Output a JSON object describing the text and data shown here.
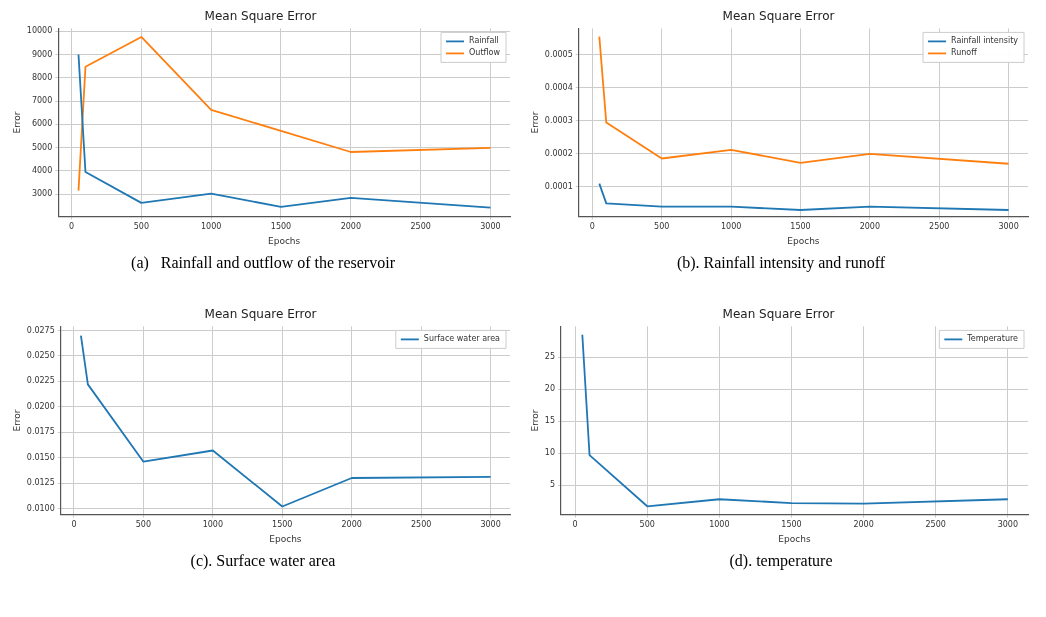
{
  "chart_data": [
    {
      "type": "line",
      "title": "Mean Square Error",
      "xlabel": "Epochs",
      "ylabel": "Error",
      "x": [
        50,
        100,
        500,
        1000,
        1500,
        2000,
        3000
      ],
      "series": [
        {
          "name": "Rainfall",
          "color": "#1f77b4",
          "values": [
            9000,
            3950,
            2620,
            3020,
            2450,
            2840,
            2420
          ]
        },
        {
          "name": "Outflow",
          "color": "#ff7f0e",
          "values": [
            3150,
            8480,
            9760,
            6620,
            5720,
            4810,
            4990
          ]
        }
      ],
      "xlim": [
        -95,
        3140
      ],
      "xticks": [
        0,
        500,
        1000,
        1500,
        2000,
        2500,
        3000
      ],
      "ylim": [
        2030,
        10130
      ],
      "yticks": [
        3000,
        4000,
        5000,
        6000,
        7000,
        8000,
        9000,
        10000
      ],
      "grid": true,
      "legend": "top right",
      "marker": "none",
      "line_style": "solid",
      "annotations": [
        "(a)   Rainfall and outflow of the reservoir"
      ]
    },
    {
      "type": "line",
      "title": "Mean Square Error",
      "xlabel": "Epochs",
      "ylabel": "Error",
      "x": [
        50,
        100,
        500,
        1000,
        1500,
        2000,
        3000
      ],
      "series": [
        {
          "name": "Rainfall intensity",
          "color": "#1f77b4",
          "values": [
            0.00011,
            5e-05,
            4e-05,
            4e-05,
            3e-05,
            4e-05,
            3e-05
          ]
        },
        {
          "name": "Runoff",
          "color": "#ff7f0e",
          "values": [
            0.000555,
            0.000295,
            0.000186,
            0.000212,
            0.000173,
            0.0002,
            0.00017
          ]
        }
      ],
      "xlim": [
        -98,
        3140
      ],
      "xticks": [
        0,
        500,
        1000,
        1500,
        2000,
        2500,
        3000
      ],
      "ylim": [
        1e-05,
        0.00058
      ],
      "yticks": [
        0.0001,
        0.0002,
        0.0003,
        0.0004,
        0.0005
      ],
      "grid": true,
      "legend": "top right",
      "marker": "none",
      "line_style": "solid",
      "annotations": [
        "(b). Rainfall intensity and runoff"
      ]
    },
    {
      "type": "line",
      "title": "Mean Square Error",
      "xlabel": "Epochs",
      "ylabel": "Error",
      "x": [
        50,
        100,
        500,
        1000,
        1500,
        2000,
        3000
      ],
      "series": [
        {
          "name": "Surface water area",
          "color": "#1f77b4",
          "values": [
            0.027,
            0.0222,
            0.0146,
            0.0157,
            0.0102,
            0.013,
            0.0131
          ]
        }
      ],
      "xlim": [
        -95,
        3140
      ],
      "xticks": [
        0,
        500,
        1000,
        1500,
        2000,
        2500,
        3000
      ],
      "ylim": [
        0.0094,
        0.0279
      ],
      "yticks": [
        {
          "value": 0.01,
          "label": "0.0100"
        },
        {
          "value": 0.0125,
          "label": "0.0125"
        },
        {
          "value": 0.015,
          "label": "0.0150"
        },
        {
          "value": 0.0175,
          "label": "0.0175"
        },
        {
          "value": 0.02,
          "label": "0.0200"
        },
        {
          "value": 0.0225,
          "label": "0.0225"
        },
        {
          "value": 0.025,
          "label": "0.0250"
        },
        {
          "value": 0.0275,
          "label": "0.0275"
        }
      ],
      "grid": true,
      "legend": "top right",
      "marker": "none",
      "line_style": "solid",
      "annotations": [
        "(c). Surface water area"
      ]
    },
    {
      "type": "line",
      "title": "Mean Square Error",
      "xlabel": "Epochs",
      "ylabel": "Error",
      "x": [
        50,
        100,
        500,
        1000,
        1500,
        2000,
        3000
      ],
      "series": [
        {
          "name": "Temperature",
          "color": "#1f77b4",
          "values": [
            28.5,
            9.7,
            1.7,
            2.8,
            2.2,
            2.1,
            2.8
          ]
        }
      ],
      "xlim": [
        -98,
        3140
      ],
      "xticks": [
        0,
        500,
        1000,
        1500,
        2000,
        2500,
        3000
      ],
      "ylim": [
        0.4,
        29.8
      ],
      "yticks": [
        5,
        10,
        15,
        20,
        25
      ],
      "grid": true,
      "legend": "top right",
      "marker": "none",
      "line_style": "solid",
      "annotations": [
        "(d). temperature"
      ]
    }
  ]
}
